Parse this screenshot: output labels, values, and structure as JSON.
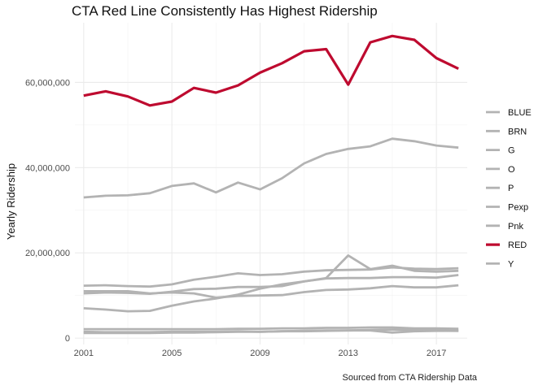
{
  "chart_data": {
    "type": "line",
    "title": "CTA Red Line Consistently Has Highest Ridership",
    "caption": "Sourced from CTA Ridership Data",
    "xlabel": "",
    "ylabel": "Yearly Ridership",
    "xlim": [
      2000.6,
      2018.4
    ],
    "ylim": [
      -1500000,
      74000000
    ],
    "x_ticks": [
      2001,
      2005,
      2009,
      2013,
      2017
    ],
    "x_tick_labels": [
      "2001",
      "2005",
      "2009",
      "2013",
      "2017"
    ],
    "y_ticks": [
      0,
      20000000,
      40000000,
      60000000
    ],
    "y_tick_labels": [
      "0",
      "20,000,000",
      "40,000,000",
      "60,000,000"
    ],
    "grid": true,
    "legend_position": "right",
    "x": [
      2001,
      2002,
      2003,
      2004,
      2005,
      2006,
      2007,
      2008,
      2009,
      2010,
      2011,
      2012,
      2013,
      2014,
      2015,
      2016,
      2017,
      2018
    ],
    "series": [
      {
        "name": "BLUE",
        "color": "#b3b3b3",
        "values": [
          33000000,
          33400000,
          33500000,
          34000000,
          35700000,
          36300000,
          34200000,
          36500000,
          34900000,
          37500000,
          41000000,
          43200000,
          44400000,
          45000000,
          46800000,
          46200000,
          45200000,
          44700000
        ]
      },
      {
        "name": "BRN",
        "color": "#b3b3b3",
        "values": [
          12300000,
          12400000,
          12200000,
          12100000,
          12600000,
          13700000,
          14400000,
          15200000,
          14800000,
          15000000,
          15600000,
          15900000,
          16000000,
          16100000,
          16600000,
          16300000,
          16200000,
          16400000
        ]
      },
      {
        "name": "G",
        "color": "#b3b3b3",
        "values": [
          7000000,
          6700000,
          6300000,
          6400000,
          7600000,
          8600000,
          9300000,
          10200000,
          11600000,
          12600000,
          13300000,
          14000000,
          14100000,
          14100000,
          14300000,
          14300000,
          14200000,
          14800000
        ]
      },
      {
        "name": "O",
        "color": "#b3b3b3",
        "values": [
          11000000,
          11000000,
          11000000,
          10500000,
          10700000,
          10500000,
          9500000,
          9900000,
          10000000,
          10100000,
          10800000,
          11300000,
          11400000,
          11700000,
          12200000,
          11900000,
          11900000,
          12400000
        ]
      },
      {
        "name": "P",
        "color": "#b3b3b3",
        "values": [
          2100000,
          2100000,
          2100000,
          2100000,
          2100000,
          2100000,
          2100000,
          2200000,
          2200000,
          2300000,
          2300000,
          2400000,
          2400000,
          2500000,
          2500000,
          2300000,
          2300000,
          2200000
        ]
      },
      {
        "name": "Pexp",
        "color": "#b3b3b3",
        "values": [
          1200000,
          1200000,
          1200000,
          1200000,
          1300000,
          1300000,
          1400000,
          1500000,
          1500000,
          1600000,
          1600000,
          1700000,
          1800000,
          1800000,
          1300000,
          1600000,
          1700000,
          1700000
        ]
      },
      {
        "name": "Pnk",
        "color": "#b3b3b3",
        "values": [
          10500000,
          10700000,
          10600000,
          10400000,
          10900000,
          11500000,
          11600000,
          12000000,
          12000000,
          12200000,
          13300000,
          14100000,
          19400000,
          16200000,
          17000000,
          15800000,
          15600000,
          15800000
        ]
      },
      {
        "name": "RED",
        "color": "#be0a2f",
        "highlight": true,
        "values": [
          56900000,
          57900000,
          56700000,
          54600000,
          55500000,
          58700000,
          57600000,
          59300000,
          62300000,
          64500000,
          67300000,
          67800000,
          59500000,
          69400000,
          70900000,
          70000000,
          65700000,
          63200000
        ]
      },
      {
        "name": "Y",
        "color": "#b3b3b3",
        "values": [
          1500000,
          1400000,
          1400000,
          1400000,
          1500000,
          1500000,
          1500000,
          1600000,
          1500000,
          1600000,
          1700000,
          1800000,
          1800000,
          1900000,
          2000000,
          1900000,
          1800000,
          1700000
        ]
      }
    ]
  }
}
